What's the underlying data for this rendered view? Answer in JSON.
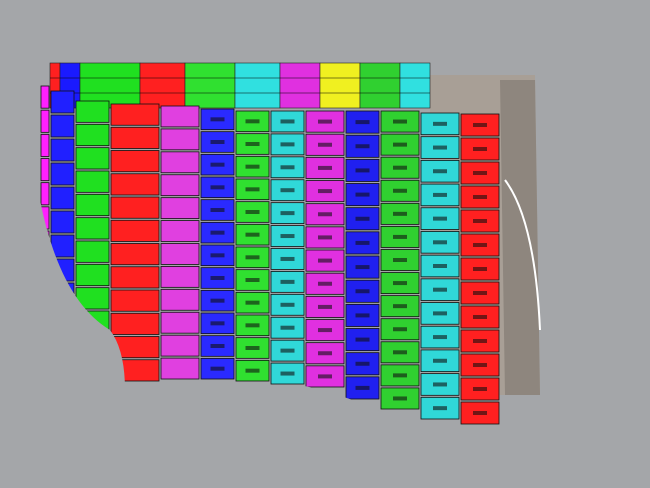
{
  "viewport": {
    "background": "#a4a6a9",
    "wall_color": "#a89f96",
    "wall_shade": "#8e867e",
    "panel_outline": "#222222",
    "back_row_colors": [
      "#ff2020",
      "#1a1aff",
      "#20e020",
      "#ff2020",
      "#30e030",
      "#30e0e0",
      "#e030e0",
      "#f0f020",
      "#30d030",
      "#30e0e0"
    ],
    "front_columns": [
      {
        "color": "#ff20ff",
        "rows": 12
      },
      {
        "color": "#2020ff",
        "rows": 12
      },
      {
        "color": "#20e020",
        "rows": 12
      },
      {
        "color": "#ff2020",
        "rows": 12
      },
      {
        "color": "#e040e0",
        "rows": 12
      },
      {
        "color": "#2a2aff",
        "rows": 12
      },
      {
        "color": "#30e030",
        "rows": 12
      },
      {
        "color": "#30d8d8",
        "rows": 12
      },
      {
        "color": "#e030e0",
        "rows": 12
      },
      {
        "color": "#2020f0",
        "rows": 12
      },
      {
        "color": "#30d030",
        "rows": 13
      },
      {
        "color": "#30d8d8",
        "rows": 13
      },
      {
        "color": "#ff2020",
        "rows": 13
      }
    ]
  }
}
